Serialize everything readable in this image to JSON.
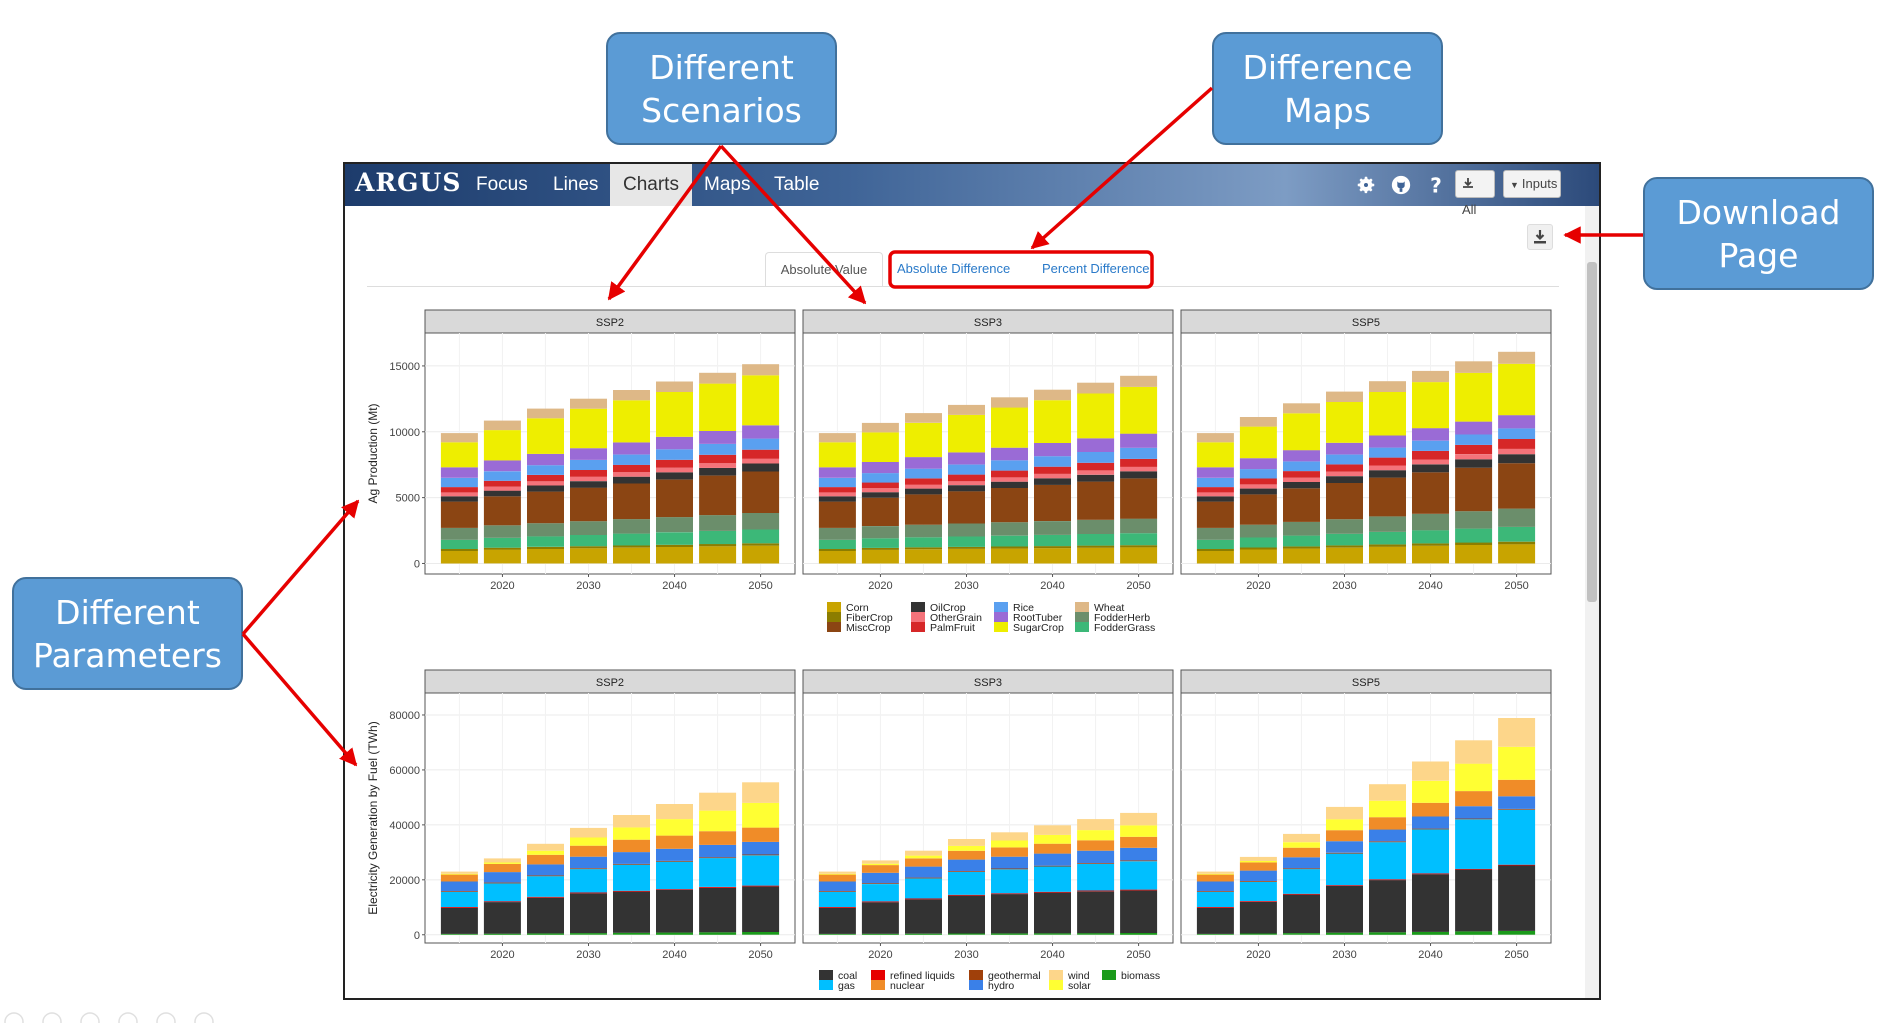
{
  "callouts": {
    "scenarios": "Different\nScenarios",
    "difference_maps": "Difference\nMaps",
    "download_page": "Download\nPage",
    "parameters": "Different\nParameters"
  },
  "app": {
    "brand": "ARGUS",
    "tabs": [
      {
        "label": "Focus"
      },
      {
        "label": "Lines"
      },
      {
        "label": "Charts",
        "active": true
      },
      {
        "label": "Maps"
      },
      {
        "label": "Table"
      }
    ],
    "nav_icons": [
      "gear-icon",
      "github-icon",
      "help-icon"
    ],
    "download_all_label": "All",
    "inputs_label": "Inputs",
    "subtabs": {
      "absolute_value": "Absolute Value",
      "absolute_difference": "Absolute Difference",
      "percent_difference": "Percent Difference"
    }
  },
  "chart_data": [
    {
      "type": "bar",
      "stacked": true,
      "ylabel": "Ag Production (Mt)",
      "facets": [
        "SSP2",
        "SSP3",
        "SSP5"
      ],
      "x": [
        2015,
        2020,
        2025,
        2030,
        2035,
        2040,
        2045,
        2050
      ],
      "x_ticks": [
        2020,
        2030,
        2040,
        2050
      ],
      "y_ticks": [
        0,
        5000,
        10000,
        15000
      ],
      "ylim": [
        -800,
        17500
      ],
      "series": [
        {
          "name": "Corn",
          "color": "#c8a400",
          "values": {
            "SSP2": [
              950,
              1050,
              1100,
              1150,
              1200,
              1250,
              1300,
              1350
            ],
            "SSP3": [
              950,
              1030,
              1070,
              1100,
              1130,
              1160,
              1190,
              1220
            ],
            "SSP5": [
              950,
              1060,
              1130,
              1200,
              1270,
              1340,
              1400,
              1460
            ]
          }
        },
        {
          "name": "FiberCrop",
          "color": "#8c7d00",
          "values": {
            "SSP2": [
              150,
              150,
              160,
              160,
              170,
              170,
              175,
              180
            ],
            "SSP3": [
              150,
              150,
              155,
              155,
              160,
              160,
              165,
              165
            ],
            "SSP5": [
              150,
              155,
              165,
              170,
              180,
              185,
              190,
              195
            ]
          }
        },
        {
          "name": "FodderGrass",
          "color": "#3cb878",
          "values": {
            "SSP2": [
              700,
              750,
              800,
              850,
              900,
              950,
              1000,
              1050
            ],
            "SSP3": [
              700,
              730,
              760,
              790,
              820,
              850,
              880,
              910
            ],
            "SSP5": [
              700,
              760,
              820,
              880,
              940,
              1000,
              1060,
              1120
            ]
          }
        },
        {
          "name": "FodderHerb",
          "color": "#6b8e6b",
          "values": {
            "SSP2": [
              900,
              950,
              1000,
              1050,
              1100,
              1150,
              1200,
              1250
            ],
            "SSP3": [
              900,
              930,
              960,
              990,
              1020,
              1050,
              1080,
              1110
            ],
            "SSP5": [
              900,
              970,
              1040,
              1110,
              1180,
              1250,
              1320,
              1390
            ]
          }
        },
        {
          "name": "MiscCrop",
          "color": "#8b4513",
          "values": {
            "SSP2": [
              2000,
              2200,
              2400,
              2550,
              2700,
              2850,
              3000,
              3150
            ],
            "SSP3": [
              2000,
              2150,
              2300,
              2450,
              2600,
              2750,
              2900,
              3050
            ],
            "SSP5": [
              2000,
              2300,
              2550,
              2750,
              2950,
              3150,
              3300,
              3450
            ]
          }
        },
        {
          "name": "OilCrop",
          "color": "#333333",
          "values": {
            "SSP2": [
              400,
              430,
              460,
              490,
              520,
              550,
              580,
              610
            ],
            "SSP3": [
              400,
              420,
              440,
              460,
              480,
              500,
              520,
              540
            ],
            "SSP5": [
              400,
              440,
              480,
              520,
              560,
              600,
              640,
              680
            ]
          }
        },
        {
          "name": "OtherGrain",
          "color": "#f4737a",
          "values": {
            "SSP2": [
              300,
              310,
              320,
              330,
              340,
              350,
              360,
              370
            ],
            "SSP3": [
              300,
              305,
              310,
              315,
              320,
              325,
              330,
              335
            ],
            "SSP5": [
              300,
              315,
              330,
              345,
              360,
              375,
              390,
              405
            ]
          }
        },
        {
          "name": "PalmFruit",
          "color": "#d62728",
          "values": {
            "SSP2": [
              400,
              440,
              480,
              520,
              560,
              600,
              640,
              680
            ],
            "SSP3": [
              400,
              430,
              460,
              490,
              520,
              550,
              580,
              610
            ],
            "SSP5": [
              400,
              450,
              500,
              550,
              600,
              650,
              700,
              750
            ]
          }
        },
        {
          "name": "Rice",
          "color": "#5aa0f0",
          "values": {
            "SSP2": [
              700,
              720,
              740,
              760,
              780,
              800,
              820,
              840
            ],
            "SSP3": [
              700,
              720,
              740,
              760,
              780,
              800,
              820,
              840
            ],
            "SSP5": [
              700,
              715,
              730,
              745,
              760,
              775,
              790,
              805
            ]
          }
        },
        {
          "name": "RootTuber",
          "color": "#9a6bd6",
          "values": {
            "SSP2": [
              800,
              830,
              860,
              890,
              920,
              950,
              980,
              1010
            ],
            "SSP3": [
              800,
              840,
              880,
              920,
              960,
              1000,
              1040,
              1080
            ],
            "SSP5": [
              800,
              830,
              860,
              890,
              920,
              950,
              980,
              1010
            ]
          }
        },
        {
          "name": "SugarCrop",
          "color": "#eeee00",
          "values": {
            "SSP2": [
              1900,
              2300,
              2700,
              3000,
              3200,
              3400,
              3600,
              3800
            ],
            "SSP3": [
              1900,
              2250,
              2600,
              2850,
              3050,
              3250,
              3400,
              3550
            ],
            "SSP5": [
              1900,
              2400,
              2800,
              3100,
              3300,
              3500,
              3700,
              3900
            ]
          }
        },
        {
          "name": "Wheat",
          "color": "#deb887",
          "values": {
            "SSP2": [
              700,
              720,
              740,
              760,
              780,
              800,
              820,
              840
            ],
            "SSP3": [
              700,
              720,
              740,
              760,
              780,
              800,
              820,
              840
            ],
            "SSP5": [
              700,
              730,
              760,
              790,
              820,
              850,
              880,
              910
            ]
          }
        }
      ]
    },
    {
      "type": "bar",
      "stacked": true,
      "ylabel": "Electricity Generation by Fuel (TWh)",
      "facets": [
        "SSP2",
        "SSP3",
        "SSP5"
      ],
      "x": [
        2015,
        2020,
        2025,
        2030,
        2035,
        2040,
        2045,
        2050
      ],
      "x_ticks": [
        2020,
        2030,
        2040,
        2050
      ],
      "y_ticks": [
        0,
        20000,
        40000,
        60000,
        80000
      ],
      "ylim": [
        -3000,
        88000
      ],
      "series": [
        {
          "name": "biomass",
          "color": "#1a9a1a",
          "values": {
            "SSP2": [
              300,
              400,
              500,
              600,
              700,
              800,
              900,
              1000
            ],
            "SSP3": [
              300,
              350,
              400,
              450,
              500,
              550,
              600,
              650
            ],
            "SSP5": [
              300,
              450,
              600,
              750,
              900,
              1050,
              1200,
              1400
            ]
          }
        },
        {
          "name": "coal",
          "color": "#333333",
          "values": {
            "SSP2": [
              9500,
              11500,
              13000,
              14500,
              15000,
              15500,
              16200,
              16600
            ],
            "SSP3": [
              9500,
              11500,
              12500,
              13800,
              14300,
              14800,
              15200,
              15500
            ],
            "SSP5": [
              9500,
              11500,
              14000,
              17000,
              19000,
              21000,
              22500,
              23800
            ]
          }
        },
        {
          "name": "refined liquids",
          "color": "#e60000",
          "values": {
            "SSP2": [
              300,
              300,
              300,
              300,
              300,
              300,
              300,
              300
            ],
            "SSP3": [
              300,
              300,
              300,
              300,
              300,
              300,
              300,
              300
            ],
            "SSP5": [
              300,
              300,
              300,
              300,
              300,
              300,
              300,
              300
            ]
          }
        },
        {
          "name": "gas",
          "color": "#00bfff",
          "values": {
            "SSP2": [
              5500,
              6500,
              7500,
              8500,
              9500,
              10000,
              10500,
              11000
            ],
            "SSP3": [
              5500,
              6300,
              7300,
              8300,
              8700,
              9200,
              9700,
              10300
            ],
            "SSP5": [
              5500,
              7000,
              9000,
              11500,
              13500,
              16000,
              18000,
              20000
            ]
          }
        },
        {
          "name": "geothermal",
          "color": "#a0400a",
          "values": {
            "SSP2": [
              300,
              300,
              300,
              300,
              300,
              300,
              300,
              300
            ],
            "SSP3": [
              300,
              300,
              300,
              300,
              300,
              300,
              300,
              300
            ],
            "SSP5": [
              300,
              300,
              300,
              300,
              300,
              300,
              300,
              300
            ]
          }
        },
        {
          "name": "hydro",
          "color": "#3a80e8",
          "values": {
            "SSP2": [
              3500,
              3800,
              4000,
              4200,
              4300,
              4400,
              4500,
              4600
            ],
            "SSP3": [
              3500,
              3800,
              4000,
              4200,
              4300,
              4400,
              4500,
              4600
            ],
            "SSP5": [
              3500,
              3800,
              4000,
              4200,
              4300,
              4400,
              4500,
              4600
            ]
          }
        },
        {
          "name": "nuclear",
          "color": "#f08c28",
          "values": {
            "SSP2": [
              2500,
              3000,
              3500,
              4000,
              4500,
              4800,
              5000,
              5200
            ],
            "SSP3": [
              2500,
              2800,
              3000,
              3200,
              3400,
              3600,
              3800,
              4000
            ],
            "SSP5": [
              2500,
              3000,
              3500,
              4000,
              4500,
              5000,
              5500,
              6000
            ]
          }
        },
        {
          "name": "solar",
          "color": "#ffff33",
          "values": {
            "SSP2": [
              300,
              500,
              1500,
              3000,
              4500,
              6000,
              7500,
              9000
            ],
            "SSP3": [
              300,
              500,
              1000,
              1800,
              2500,
              3200,
              3700,
              4200
            ],
            "SSP5": [
              300,
              500,
              2000,
              4000,
              6000,
              8000,
              10000,
              12000
            ]
          }
        },
        {
          "name": "wind",
          "color": "#fdd68a",
          "values": {
            "SSP2": [
              800,
              1500,
              2500,
              3500,
              4500,
              5500,
              6500,
              7500
            ],
            "SSP3": [
              800,
              1200,
              1800,
              2500,
              3000,
              3500,
              4000,
              4500
            ],
            "SSP5": [
              800,
              1500,
              3000,
              4500,
              6000,
              7000,
              8500,
              10500
            ]
          }
        }
      ]
    }
  ],
  "legends": [
    {
      "columns": [
        [
          "Corn",
          "FiberCrop",
          "MiscCrop"
        ],
        [
          "OilCrop",
          "OtherGrain",
          "PalmFruit"
        ],
        [
          "Rice",
          "RootTuber",
          "SugarCrop"
        ],
        [
          "Wheat",
          "FodderHerb",
          "FodderGrass"
        ]
      ]
    },
    {
      "columns": [
        [
          "coal",
          "gas"
        ],
        [
          "refined liquids",
          "nuclear"
        ],
        [
          "geothermal",
          "hydro"
        ],
        [
          "wind",
          "solar"
        ],
        [
          "biomass"
        ]
      ]
    }
  ]
}
